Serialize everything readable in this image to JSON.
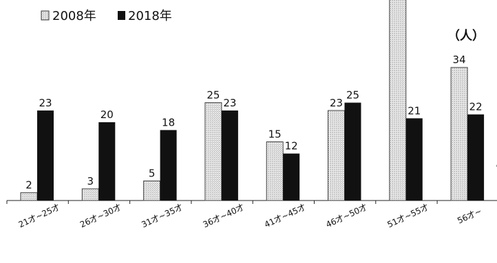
{
  "chart_data": {
    "type": "bar",
    "unit_label": "（人）",
    "categories": [
      "21才~25才",
      "26才~30才",
      "31才~35才",
      "36才~40才",
      "41才~45才",
      "46才~50才",
      "51才~55才",
      "56才~"
    ],
    "series": [
      {
        "name": "2008年",
        "values": [
          2,
          3,
          5,
          25,
          15,
          23,
          55,
          34
        ],
        "value_labels": [
          "2",
          "3",
          "5",
          "25",
          "15",
          "23",
          "",
          "34"
        ],
        "color": "#e3e3e3"
      },
      {
        "name": "2018年",
        "values": [
          23,
          20,
          18,
          23,
          12,
          25,
          21,
          22
        ],
        "value_labels": [
          "23",
          "20",
          "18",
          "23",
          "12",
          "25",
          "21",
          "22"
        ],
        "color": "#111111"
      }
    ],
    "legend_position": "top-left",
    "grid": false
  }
}
